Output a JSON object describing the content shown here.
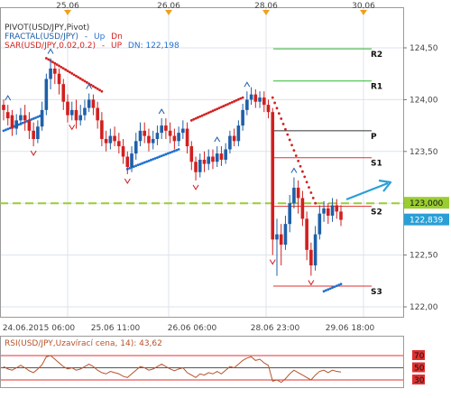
{
  "header": {
    "pivot_label": "PIVOT(USD/JPY,Pivot)",
    "fractal_label": "FRACTAL(USD/JPY)",
    "fractal_up": "Up",
    "fractal_dn": "Dn",
    "sar_label": "SAR(USD/JPY,0.02,0.2)",
    "sar_up": "UP",
    "sar_dn": "DN: 122,198",
    "rsi_label": "RSI(USD/JPY,Uzavírací cena, 14): 43,62"
  },
  "colors": {
    "up_candle": "#1f5fa8",
    "down_candle": "#d21f1f",
    "sar_up": "#1f6fd0",
    "sar_dn": "#d21f1f",
    "resistance": "#2eb82e",
    "pivot": "#333333",
    "support": "#e03030",
    "current_line": "#9acd32",
    "price_tag": "#2a9fd6",
    "rsi_line": "#b5532a",
    "rsi_band": "#e03030",
    "arrow": "#2a9fd6",
    "session_marker": "#f0a020"
  },
  "chart_data": {
    "type": "candlestick",
    "symbol": "USD/JPY",
    "ylim": [
      121.9,
      124.85
    ],
    "y_ticks": [
      "124,50",
      "124,00",
      "123,50",
      "123,00",
      "122,50",
      "122,00"
    ],
    "y_tick_values": [
      124.5,
      124.0,
      123.5,
      123.0,
      122.5,
      122.0
    ],
    "top_date_labels": [
      "25.06",
      "26.06",
      "28.06",
      "30.06"
    ],
    "bottom_date_labels": [
      "24.06.2015 06:00",
      "25.06 11:00",
      "26.06 06:00",
      "28.06 23:00",
      "29.06 18:00"
    ],
    "levels": [
      {
        "name": "R2",
        "value": 124.49
      },
      {
        "name": "R1",
        "value": 124.18
      },
      {
        "name": "P",
        "value": 123.7
      },
      {
        "name": "S1",
        "value": 123.44
      },
      {
        "name": "S2",
        "value": 122.97
      },
      {
        "name": "S3",
        "value": 122.2
      }
    ],
    "current_level": {
      "label": "123,000",
      "value": 123.0
    },
    "last_price": {
      "label": "122,839",
      "value": 122.839
    },
    "candles": [
      [
        123.95,
        123.9,
        124.0,
        123.8
      ],
      [
        123.88,
        123.82,
        123.95,
        123.75
      ],
      [
        123.85,
        123.72,
        123.9,
        123.65
      ],
      [
        123.72,
        123.8,
        123.86,
        123.66
      ],
      [
        123.8,
        123.85,
        123.92,
        123.75
      ],
      [
        123.85,
        123.8,
        123.95,
        123.7
      ],
      [
        123.8,
        123.7,
        123.88,
        123.62
      ],
      [
        123.7,
        123.62,
        123.78,
        123.55
      ],
      [
        123.62,
        123.74,
        123.8,
        123.58
      ],
      [
        123.74,
        123.9,
        123.98,
        123.7
      ],
      [
        123.9,
        124.2,
        124.25,
        123.85
      ],
      [
        124.2,
        124.3,
        124.4,
        124.1
      ],
      [
        124.3,
        124.25,
        124.35,
        124.15
      ],
      [
        124.25,
        124.15,
        124.3,
        124.05
      ],
      [
        124.15,
        123.98,
        124.2,
        123.9
      ],
      [
        123.98,
        123.85,
        124.05,
        123.78
      ],
      [
        123.85,
        123.9,
        123.98,
        123.8
      ],
      [
        123.9,
        123.8,
        124.0,
        123.72
      ],
      [
        123.8,
        123.85,
        123.95,
        123.75
      ],
      [
        123.85,
        123.92,
        124.0,
        123.8
      ],
      [
        123.92,
        124.0,
        124.06,
        123.88
      ],
      [
        124.0,
        123.92,
        124.05,
        123.85
      ],
      [
        123.92,
        123.8,
        123.98,
        123.72
      ],
      [
        123.8,
        123.62,
        123.88,
        123.55
      ],
      [
        123.62,
        123.58,
        123.7,
        123.5
      ],
      [
        123.58,
        123.65,
        123.72,
        123.52
      ],
      [
        123.65,
        123.6,
        123.74,
        123.55
      ],
      [
        123.6,
        123.55,
        123.68,
        123.48
      ],
      [
        123.55,
        123.45,
        123.62,
        123.38
      ],
      [
        123.45,
        123.35,
        123.5,
        123.28
      ],
      [
        123.35,
        123.48,
        123.55,
        123.3
      ],
      [
        123.48,
        123.6,
        123.68,
        123.42
      ],
      [
        123.6,
        123.7,
        123.78,
        123.55
      ],
      [
        123.7,
        123.65,
        123.78,
        123.58
      ],
      [
        123.65,
        123.58,
        123.72,
        123.5
      ],
      [
        123.58,
        123.62,
        123.7,
        123.52
      ],
      [
        123.62,
        123.68,
        123.75,
        123.56
      ],
      [
        123.68,
        123.75,
        123.82,
        123.62
      ],
      [
        123.75,
        123.7,
        123.82,
        123.62
      ],
      [
        123.7,
        123.65,
        123.78,
        123.58
      ],
      [
        123.65,
        123.6,
        123.72,
        123.52
      ],
      [
        123.6,
        123.68,
        123.74,
        123.55
      ],
      [
        123.68,
        123.72,
        123.8,
        123.62
      ],
      [
        123.72,
        123.55,
        123.78,
        123.48
      ],
      [
        123.55,
        123.4,
        123.6,
        123.32
      ],
      [
        123.4,
        123.3,
        123.45,
        123.22
      ],
      [
        123.3,
        123.42,
        123.48,
        123.25
      ],
      [
        123.42,
        123.38,
        123.5,
        123.3
      ],
      [
        123.38,
        123.45,
        123.52,
        123.32
      ],
      [
        123.45,
        123.4,
        123.52,
        123.33
      ],
      [
        123.4,
        123.48,
        123.55,
        123.35
      ],
      [
        123.48,
        123.42,
        123.55,
        123.36
      ],
      [
        123.42,
        123.52,
        123.58,
        123.38
      ],
      [
        123.52,
        123.65,
        123.7,
        123.48
      ],
      [
        123.65,
        123.6,
        123.72,
        123.55
      ],
      [
        123.6,
        123.75,
        123.8,
        123.55
      ],
      [
        123.75,
        123.9,
        123.96,
        123.7
      ],
      [
        123.9,
        124.0,
        124.08,
        123.85
      ],
      [
        124.0,
        124.05,
        124.12,
        123.95
      ],
      [
        124.05,
        123.98,
        124.1,
        123.92
      ],
      [
        123.98,
        124.02,
        124.08,
        123.92
      ],
      [
        124.02,
        123.95,
        124.08,
        123.88
      ],
      [
        123.95,
        123.88,
        124.0,
        123.82
      ],
      [
        123.88,
        122.65,
        123.92,
        122.5
      ],
      [
        122.65,
        122.7,
        122.85,
        122.3
      ],
      [
        122.7,
        122.6,
        122.8,
        122.4
      ],
      [
        122.6,
        122.8,
        122.88,
        122.55
      ],
      [
        122.8,
        123.0,
        123.08,
        122.72
      ],
      [
        123.0,
        123.15,
        123.25,
        122.95
      ],
      [
        123.15,
        123.05,
        123.22,
        122.9
      ],
      [
        123.05,
        122.85,
        123.12,
        122.78
      ],
      [
        122.85,
        122.55,
        122.92,
        122.45
      ],
      [
        122.55,
        122.4,
        122.62,
        122.3
      ],
      [
        122.4,
        122.7,
        122.78,
        122.35
      ],
      [
        122.7,
        122.9,
        122.98,
        122.65
      ],
      [
        122.9,
        122.95,
        123.02,
        122.82
      ],
      [
        122.95,
        122.88,
        123.0,
        122.8
      ],
      [
        122.88,
        122.98,
        123.05,
        122.82
      ],
      [
        122.98,
        122.92,
        123.04,
        122.85
      ],
      [
        122.92,
        122.84,
        122.98,
        122.78
      ]
    ],
    "rsi": {
      "value": 43.62,
      "levels": [
        70,
        50,
        30
      ],
      "values": [
        52,
        48,
        46,
        50,
        54,
        50,
        45,
        42,
        48,
        55,
        68,
        70,
        64,
        58,
        52,
        48,
        50,
        46,
        48,
        52,
        56,
        52,
        46,
        42,
        40,
        44,
        42,
        40,
        36,
        34,
        40,
        46,
        52,
        50,
        46,
        48,
        52,
        56,
        52,
        48,
        45,
        48,
        50,
        42,
        38,
        34,
        40,
        38,
        42,
        40,
        44,
        40,
        46,
        52,
        50,
        56,
        62,
        66,
        68,
        62,
        64,
        58,
        54,
        28,
        30,
        26,
        32,
        40,
        46,
        42,
        38,
        34,
        30,
        38,
        44,
        46,
        42,
        46,
        44,
        43
      ]
    }
  }
}
